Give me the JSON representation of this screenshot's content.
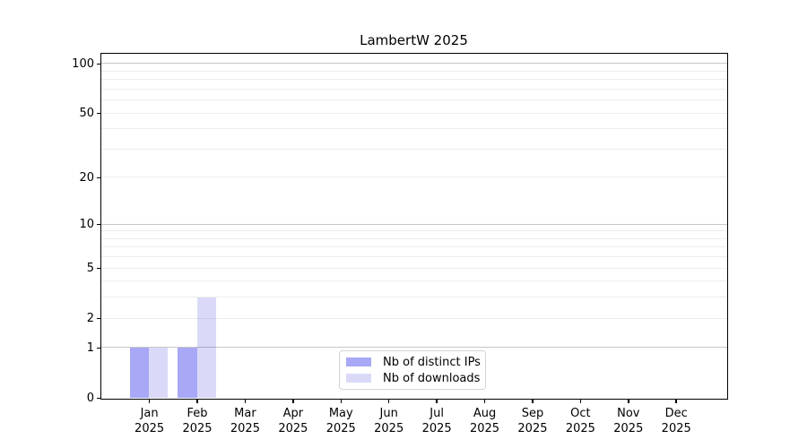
{
  "chart_data": {
    "type": "bar",
    "title": "LambertW 2025",
    "categories": [
      "Jan",
      "Feb",
      "Mar",
      "Apr",
      "May",
      "Jun",
      "Jul",
      "Aug",
      "Sep",
      "Oct",
      "Nov",
      "Dec"
    ],
    "category_year": "2025",
    "series": [
      {
        "name": "Nb of distinct IPs",
        "color": "#a8a8f6",
        "values": [
          1,
          1,
          0,
          0,
          0,
          0,
          0,
          0,
          0,
          0,
          0,
          0
        ]
      },
      {
        "name": "Nb of downloads",
        "color": "#dadaf8",
        "values": [
          1,
          3,
          0,
          0,
          0,
          0,
          0,
          0,
          0,
          0,
          0,
          0
        ]
      }
    ],
    "yscale": "log1p",
    "ylim": [
      0,
      115
    ],
    "yticks": [
      0,
      1,
      2,
      5,
      10,
      20,
      50,
      100
    ],
    "grid_major": [
      1,
      10,
      100
    ],
    "grid_minor": [
      2,
      3,
      4,
      5,
      6,
      7,
      8,
      9,
      20,
      30,
      40,
      50,
      60,
      70,
      80,
      90
    ],
    "grid": true,
    "legend_position": "lower center"
  },
  "colors": {
    "grid_major": "rgba(0,0,0,0.22)",
    "grid_minor": "rgba(0,0,0,0.07)",
    "axis": "#000000",
    "tick_label": "#000000",
    "legend_border": "#d4d4d4"
  }
}
